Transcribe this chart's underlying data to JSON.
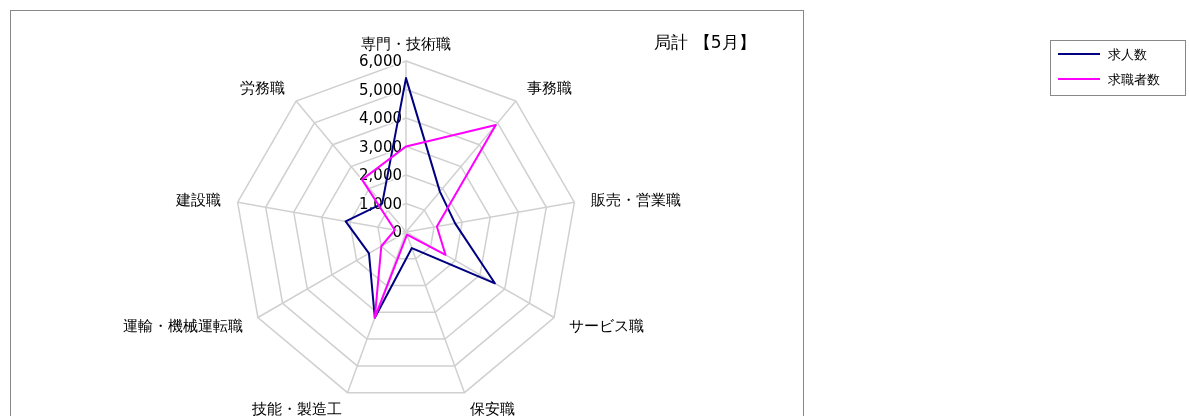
{
  "chart_data": {
    "type": "radar",
    "title": "局計 【5月】",
    "categories": [
      "専門・技術職",
      "事務職",
      "販売・営業職",
      "サービス職",
      "保安職",
      "技能・製造工",
      "運輸・機械運転職",
      "建設職",
      "労務職"
    ],
    "series": [
      {
        "name": "求人数",
        "color": "#000080",
        "values": [
          5400,
          1850,
          1750,
          3600,
          600,
          3200,
          1500,
          2150,
          1300
        ]
      },
      {
        "name": "求職者数",
        "color": "#ff00ff",
        "values": [
          3000,
          4900,
          1100,
          1600,
          100,
          3200,
          1000,
          400,
          2400
        ]
      }
    ],
    "ylim": [
      0,
      6000
    ],
    "yticks": [
      {
        "value": 0,
        "label": "0"
      },
      {
        "value": 1000,
        "label": "1,000"
      },
      {
        "value": 2000,
        "label": "2,000"
      },
      {
        "value": 3000,
        "label": "3,000"
      },
      {
        "value": 4000,
        "label": "4,000"
      },
      {
        "value": 5000,
        "label": "5,000"
      },
      {
        "value": 6000,
        "label": "6,000"
      }
    ],
    "grid": true,
    "legend": "top right",
    "marker": "none",
    "line_style": "solid"
  }
}
